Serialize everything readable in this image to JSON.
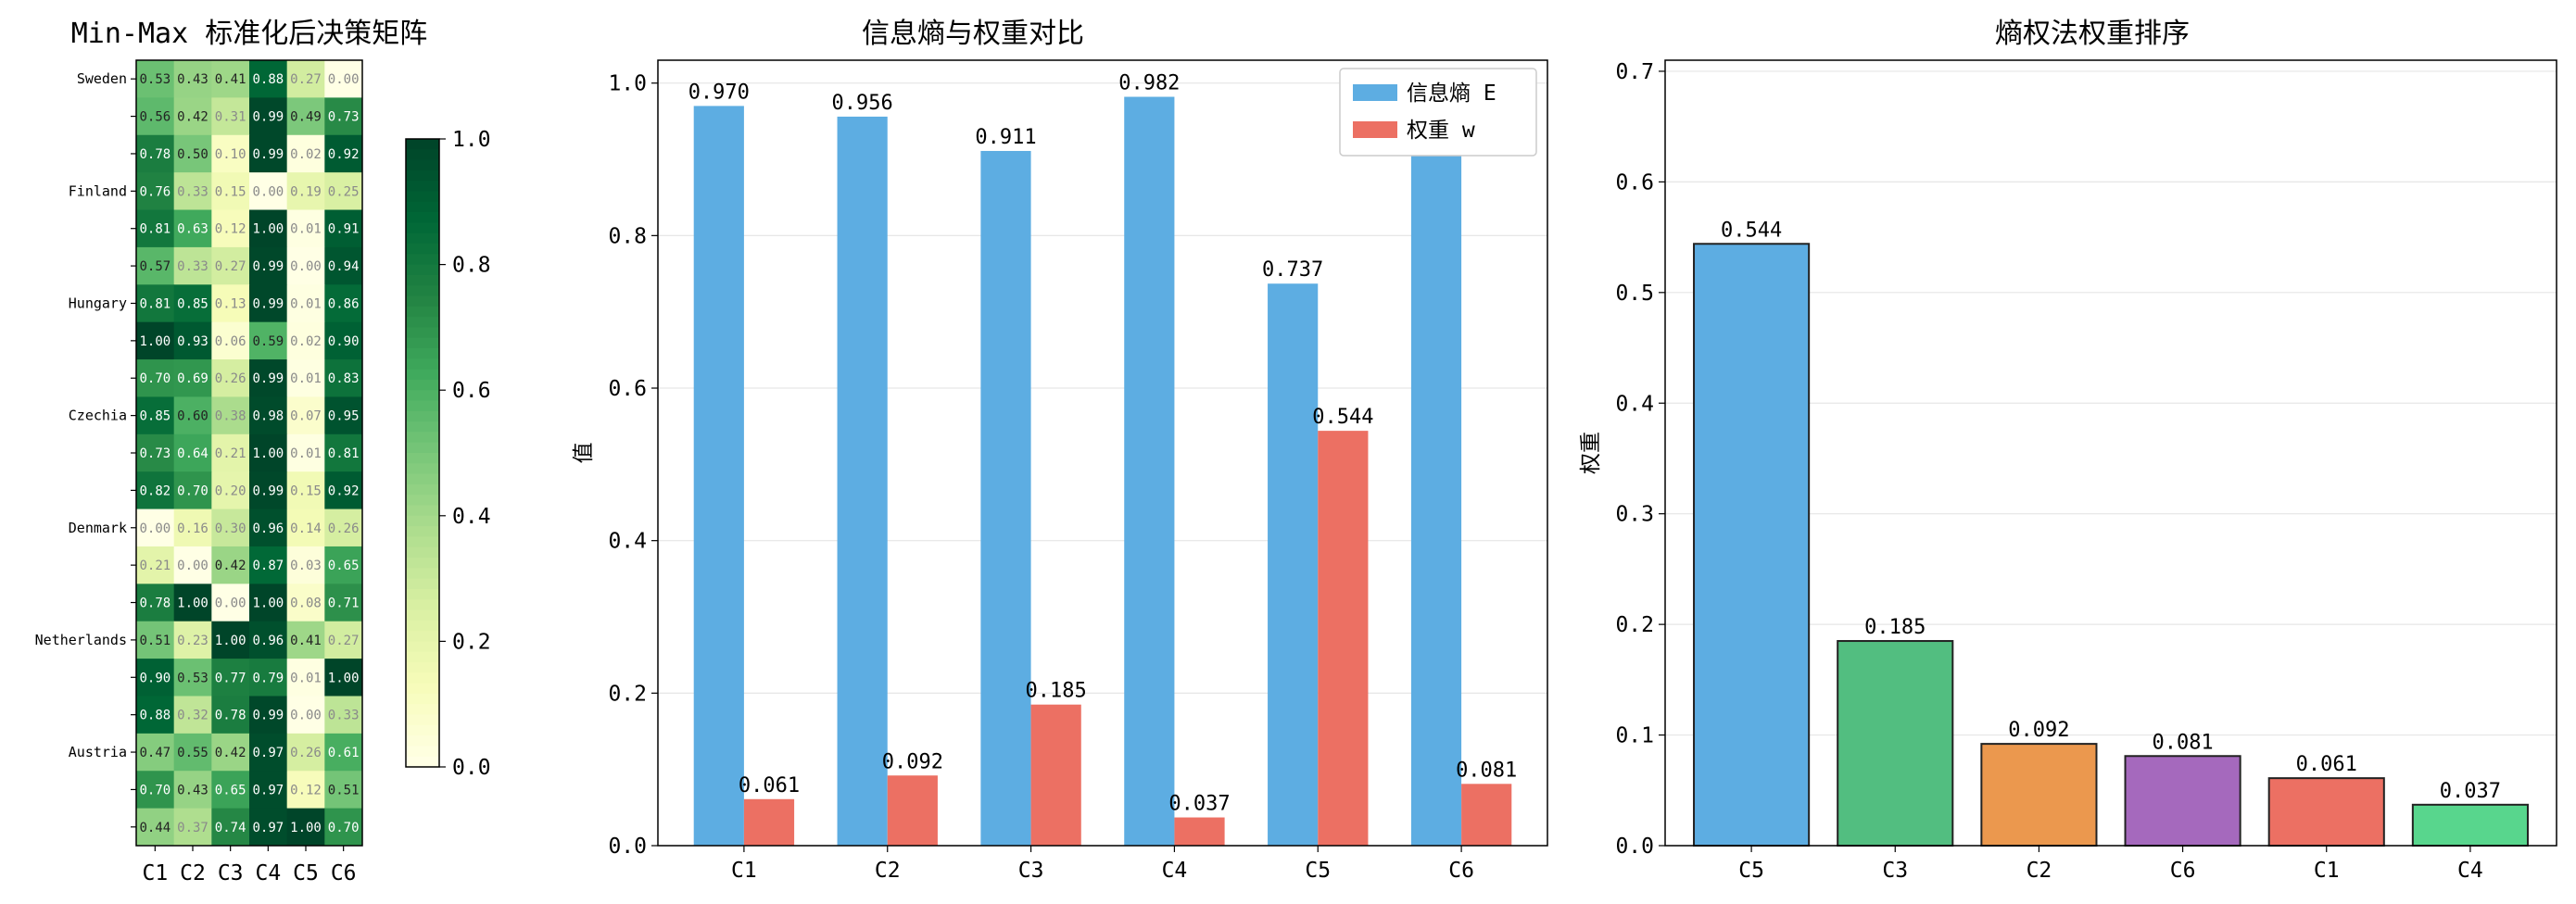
{
  "chart_data": [
    {
      "type": "heatmap",
      "title": "Min-Max 标准化后决策矩阵",
      "columns": [
        "C1",
        "C2",
        "C3",
        "C4",
        "C5",
        "C6"
      ],
      "row_labels": [
        "Sweden",
        "",
        "",
        "Finland",
        "",
        "",
        "Hungary",
        "",
        "",
        "Czechia",
        "",
        "",
        "Denmark",
        "",
        "",
        "Netherlands",
        "",
        "",
        "Austria",
        "",
        ""
      ],
      "values": [
        [
          0.53,
          0.43,
          0.41,
          0.88,
          0.27,
          0.0
        ],
        [
          0.56,
          0.42,
          0.31,
          0.99,
          0.49,
          0.73
        ],
        [
          0.78,
          0.5,
          0.1,
          0.99,
          0.02,
          0.92
        ],
        [
          0.76,
          0.33,
          0.15,
          0.0,
          0.19,
          0.25
        ],
        [
          0.81,
          0.63,
          0.12,
          1.0,
          0.01,
          0.91
        ],
        [
          0.57,
          0.33,
          0.27,
          0.99,
          0.0,
          0.94
        ],
        [
          0.81,
          0.85,
          0.13,
          0.99,
          0.01,
          0.86
        ],
        [
          1.0,
          0.93,
          0.06,
          0.59,
          0.02,
          0.9
        ],
        [
          0.7,
          0.69,
          0.26,
          0.99,
          0.01,
          0.83
        ],
        [
          0.85,
          0.6,
          0.38,
          0.98,
          0.07,
          0.95
        ],
        [
          0.73,
          0.64,
          0.21,
          1.0,
          0.01,
          0.81
        ],
        [
          0.82,
          0.7,
          0.2,
          0.99,
          0.15,
          0.92
        ],
        [
          0.0,
          0.16,
          0.3,
          0.96,
          0.14,
          0.26
        ],
        [
          0.21,
          0.0,
          0.42,
          0.87,
          0.03,
          0.65
        ],
        [
          0.78,
          1.0,
          0.0,
          1.0,
          0.08,
          0.71
        ],
        [
          0.51,
          0.23,
          1.0,
          0.96,
          0.41,
          0.27
        ],
        [
          0.9,
          0.53,
          0.77,
          0.79,
          0.01,
          1.0
        ],
        [
          0.88,
          0.32,
          0.78,
          0.99,
          0.0,
          0.33
        ],
        [
          0.47,
          0.55,
          0.42,
          0.97,
          0.26,
          0.61
        ],
        [
          0.7,
          0.43,
          0.65,
          0.97,
          0.12,
          0.51
        ],
        [
          0.44,
          0.37,
          0.74,
          0.97,
          1.0,
          0.7
        ]
      ],
      "colorbar": {
        "range": [
          0.0,
          1.0
        ],
        "ticks": [
          "0.0",
          "0.2",
          "0.4",
          "0.6",
          "0.8",
          "1.0"
        ],
        "colormap": "YlGn"
      }
    },
    {
      "type": "bar",
      "title": "信息熵与权重对比",
      "xlabel": "",
      "ylabel": "值",
      "categories": [
        "C1",
        "C2",
        "C3",
        "C4",
        "C5",
        "C6"
      ],
      "series": [
        {
          "name": "信息熵 E",
          "values": [
            0.97,
            0.956,
            0.911,
            0.982,
            0.737,
            0.963
          ],
          "labels": [
            "0.970",
            "0.956",
            "0.911",
            "0.982",
            "0.737",
            "0.963"
          ],
          "color": "#5dade2"
        },
        {
          "name": "权重 w",
          "values": [
            0.061,
            0.092,
            0.185,
            0.037,
            0.544,
            0.081
          ],
          "labels": [
            "0.061",
            "0.092",
            "0.185",
            "0.037",
            "0.544",
            "0.081"
          ],
          "color": "#ec7063"
        }
      ],
      "ylim": [
        0,
        1.03
      ],
      "yticks": [
        "0.0",
        "0.2",
        "0.4",
        "0.6",
        "0.8",
        "1.0"
      ],
      "grid": "y",
      "legend": "top-right"
    },
    {
      "type": "bar",
      "title": "熵权法权重排序",
      "xlabel": "",
      "ylabel": "权重",
      "categories": [
        "C5",
        "C3",
        "C2",
        "C6",
        "C1",
        "C4"
      ],
      "values": [
        0.544,
        0.185,
        0.092,
        0.081,
        0.061,
        0.037
      ],
      "labels": [
        "0.544",
        "0.185",
        "0.092",
        "0.081",
        "0.061",
        "0.037"
      ],
      "colors": [
        "#5dade2",
        "#52be80",
        "#eb984e",
        "#a569bd",
        "#ec7063",
        "#58d68d"
      ],
      "ylim": [
        0,
        0.71
      ],
      "yticks": [
        "0.0",
        "0.1",
        "0.2",
        "0.3",
        "0.4",
        "0.5",
        "0.6",
        "0.7"
      ],
      "grid": "y"
    }
  ]
}
